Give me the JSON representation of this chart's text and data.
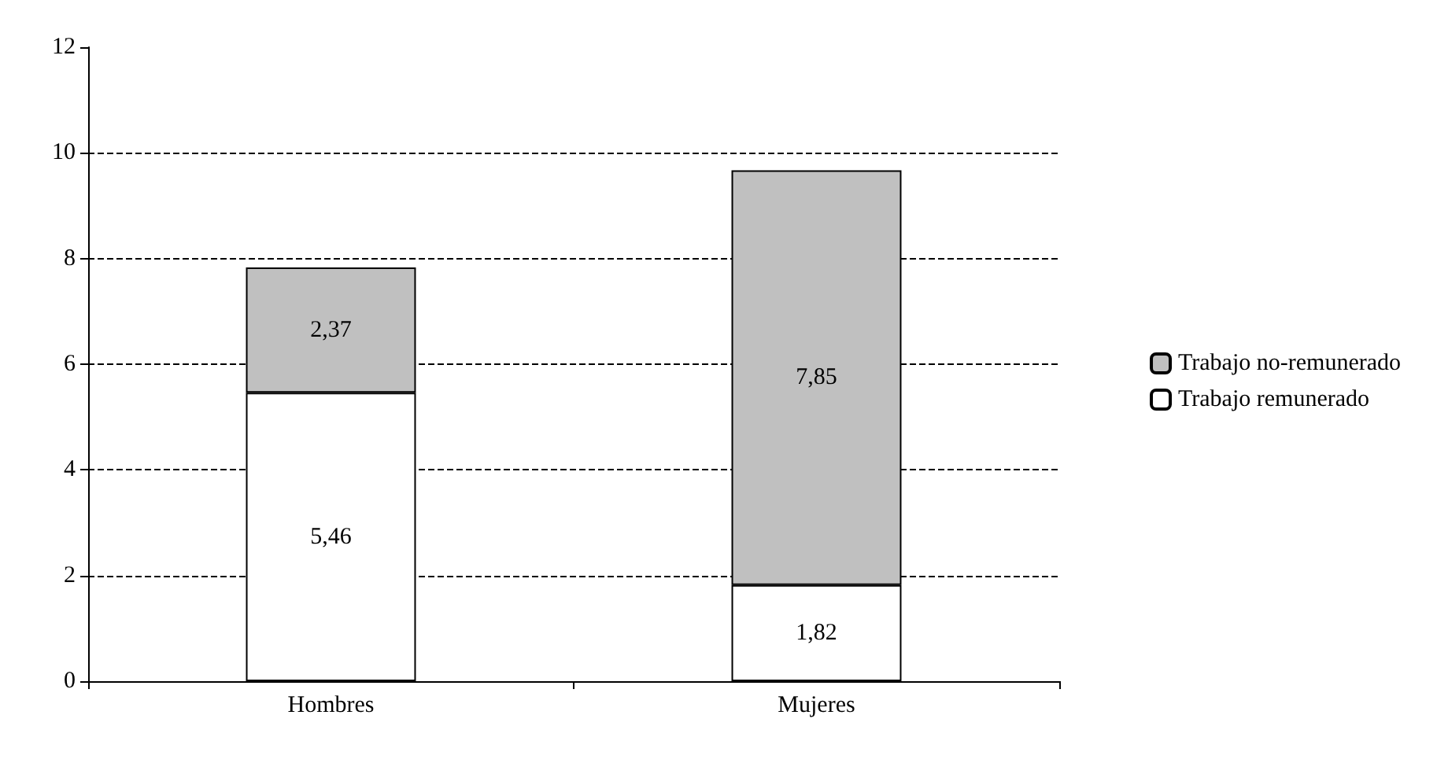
{
  "chart_data": {
    "type": "bar",
    "stacked": true,
    "categories": [
      "Hombres",
      "Mujeres"
    ],
    "series": [
      {
        "name": "Trabajo remunerado",
        "color": "#ffffff",
        "values": [
          5.46,
          1.82
        ],
        "value_labels": [
          "5,46",
          "1,82"
        ]
      },
      {
        "name": "Trabajo no-remunerado",
        "color": "#c0c0c0",
        "values": [
          2.37,
          7.85
        ],
        "value_labels": [
          "2,37",
          "7,85"
        ]
      }
    ],
    "ylim": [
      0,
      12
    ],
    "yticks": [
      0,
      2,
      4,
      6,
      8,
      10,
      12
    ],
    "grid": "y",
    "line_style": "dashed",
    "legend": "right"
  }
}
